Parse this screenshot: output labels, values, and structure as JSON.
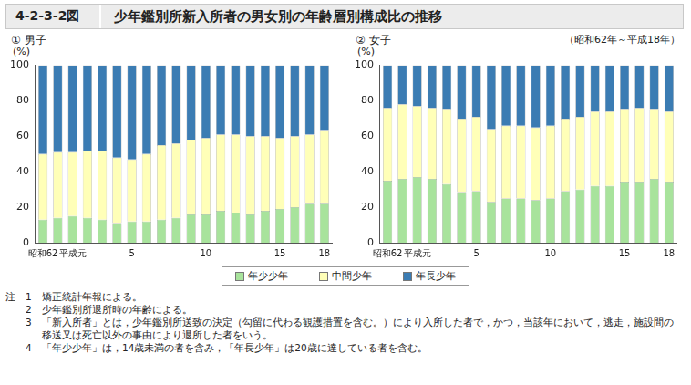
{
  "header": {
    "figure_number": "4-2-3-2図",
    "title": "少年鑑別所新入所者の男女別の年齢層別構成比の推移"
  },
  "subtitle": "（昭和62年～平成18年）",
  "legend": "bottom",
  "chart_data": [
    {
      "type": "bar",
      "title": "① 男子",
      "ylabel": "(%)",
      "stacked": true,
      "grid": false,
      "ylim": [
        0,
        100
      ],
      "yticks": [
        0,
        20,
        40,
        60,
        80,
        100
      ],
      "categories": [
        "昭和62",
        null,
        "平成元",
        null,
        null,
        null,
        "5",
        null,
        null,
        null,
        null,
        "10",
        null,
        null,
        null,
        null,
        "15",
        null,
        null,
        "18"
      ],
      "series": [
        {
          "name": "年少少年",
          "color": "#a8e39c",
          "values": [
            13,
            14,
            15,
            14,
            13,
            11,
            12,
            12,
            13,
            14,
            16,
            16,
            18,
            17,
            16,
            18,
            19,
            20,
            22,
            22
          ]
        },
        {
          "name": "中間少年",
          "color": "#ffffb8",
          "values": [
            37,
            37,
            36,
            38,
            39,
            37,
            35,
            38,
            42,
            42,
            42,
            43,
            43,
            44,
            44,
            42,
            40,
            40,
            39,
            41
          ]
        },
        {
          "name": "年長少年",
          "color": "#3b7cb3",
          "values": [
            50,
            49,
            49,
            48,
            48,
            52,
            53,
            50,
            45,
            44,
            42,
            41,
            39,
            39,
            40,
            40,
            41,
            40,
            39,
            37
          ]
        }
      ]
    },
    {
      "type": "bar",
      "title": "② 女子",
      "ylabel": "(%)",
      "stacked": true,
      "grid": false,
      "ylim": [
        0,
        100
      ],
      "yticks": [
        0,
        20,
        40,
        60,
        80,
        100
      ],
      "categories": [
        "昭和62",
        null,
        "平成元",
        null,
        null,
        null,
        "5",
        null,
        null,
        null,
        null,
        "10",
        null,
        null,
        null,
        null,
        "15",
        null,
        null,
        "18"
      ],
      "series": [
        {
          "name": "年少少年",
          "color": "#a8e39c",
          "values": [
            35,
            36,
            37,
            36,
            33,
            28,
            29,
            23,
            25,
            25,
            24,
            25,
            29,
            30,
            32,
            32,
            34,
            34,
            36,
            34
          ]
        },
        {
          "name": "中間少年",
          "color": "#ffffb8",
          "values": [
            41,
            42,
            40,
            40,
            42,
            42,
            42,
            41,
            41,
            41,
            41,
            41,
            41,
            41,
            42,
            42,
            41,
            42,
            39,
            40
          ]
        },
        {
          "name": "年長少年",
          "color": "#3b7cb3",
          "values": [
            24,
            22,
            23,
            24,
            25,
            30,
            29,
            36,
            34,
            34,
            35,
            34,
            30,
            29,
            26,
            26,
            25,
            24,
            25,
            26
          ]
        }
      ]
    }
  ],
  "notes": {
    "label": "注",
    "items": [
      {
        "number": "1",
        "text": "矯正統計年報による。"
      },
      {
        "number": "2",
        "text": "少年鑑別所退所時の年齢による。"
      },
      {
        "number": "3",
        "text": "「新入所者」とは，少年鑑別所送致の決定（勾留に代わる観護措置を含む。）により入所した者で，かつ，当該年において，逃走，施設間の移送又は死亡以外の事由により退所した者をいう。"
      },
      {
        "number": "4",
        "text": "「年少少年」は，14歳未満の者を含み，「年長少年」は20歳に達している者を含む。"
      }
    ]
  }
}
